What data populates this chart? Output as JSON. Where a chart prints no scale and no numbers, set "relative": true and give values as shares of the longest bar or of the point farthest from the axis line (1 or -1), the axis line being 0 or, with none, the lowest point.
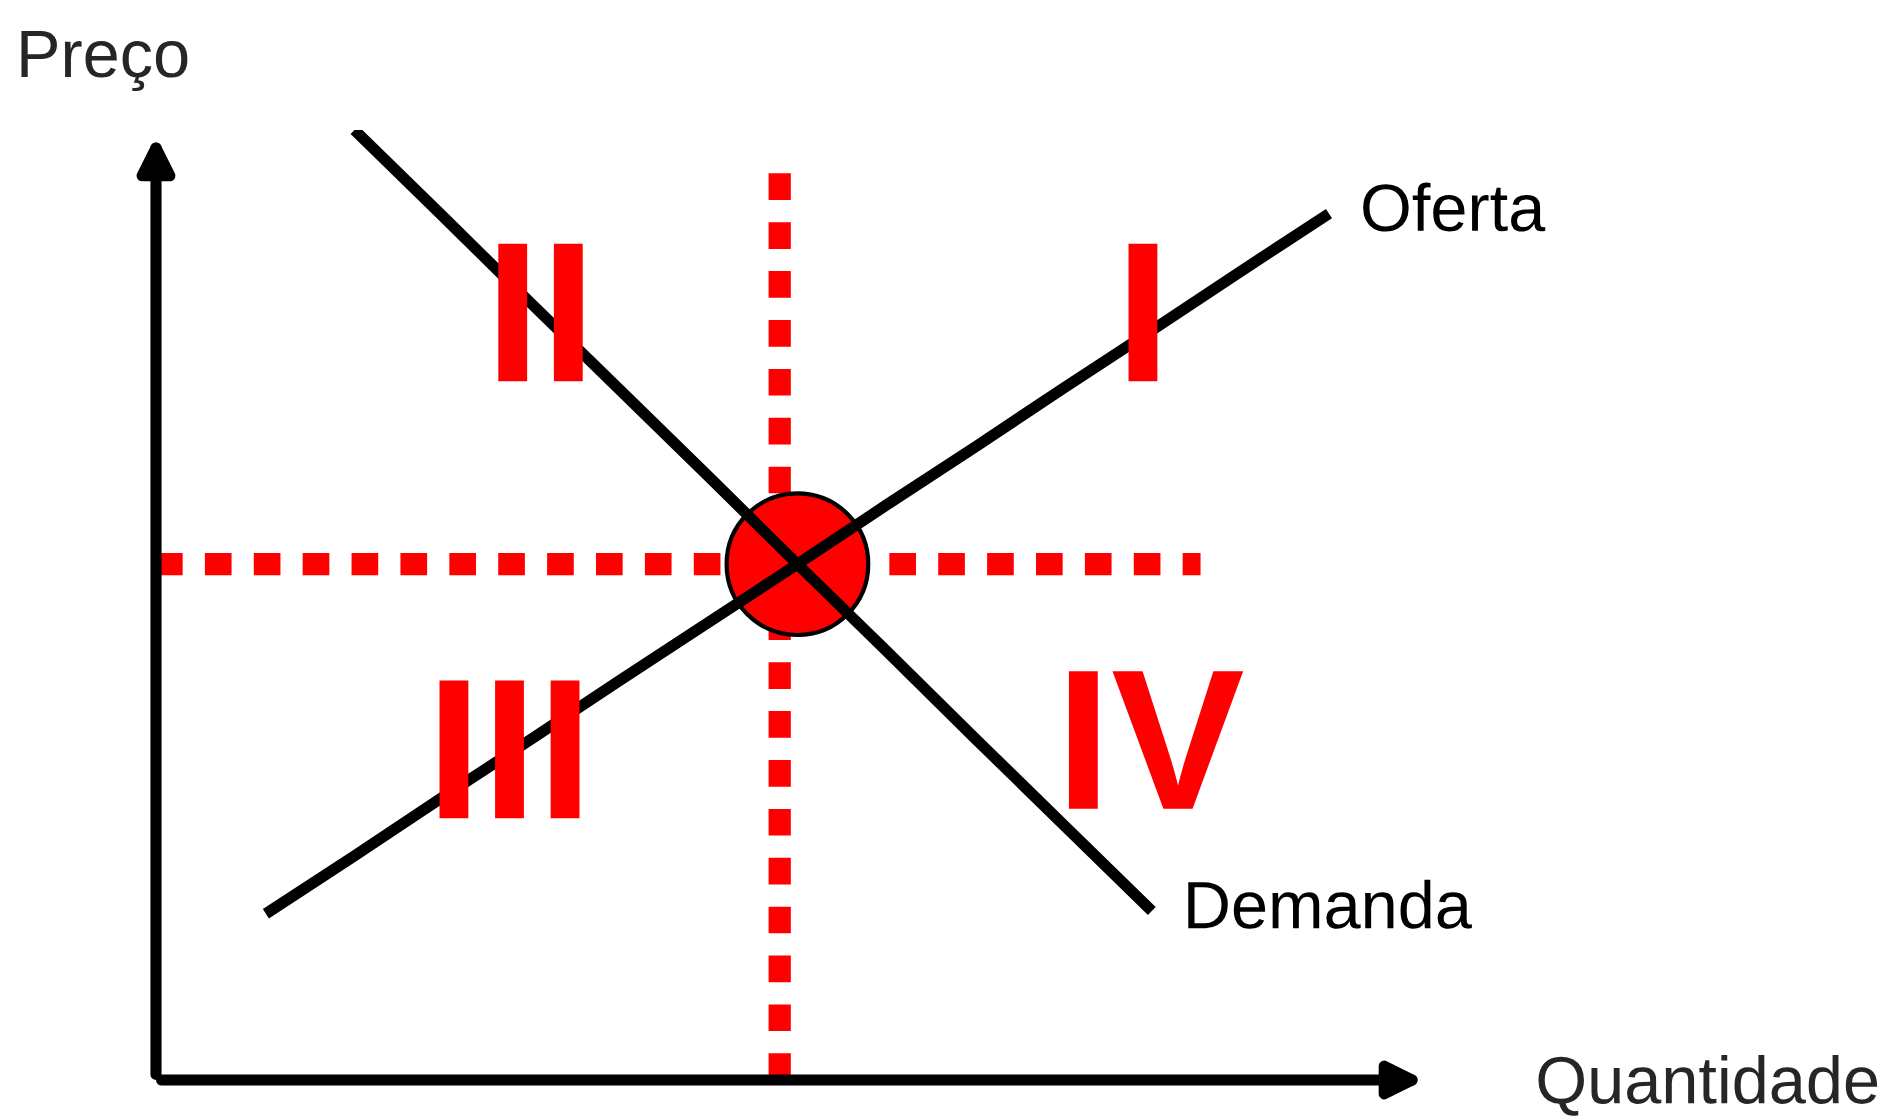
{
  "chart_data": {
    "type": "line",
    "relative": true,
    "xlabel": "Quantidade",
    "ylabel": "Preço",
    "categories": [
      null,
      null,
      null,
      null,
      null,
      null,
      null,
      null,
      null,
      null,
      null,
      null,
      null
    ],
    "series": [
      {
        "name": "Oferta",
        "color": "#000000",
        "values": [
          0.175,
          0.236,
          0.298,
          0.359,
          0.421,
          0.482,
          0.543,
          0.605,
          0.666,
          0.728,
          0.789,
          0.851,
          0.912
        ]
      },
      {
        "name": "Demanda",
        "color": "#000000",
        "values": [
          null,
          1.0,
          0.909,
          0.817,
          0.726,
          0.635,
          0.543,
          0.452,
          0.36,
          0.269,
          0.178,
          null,
          null
        ]
      }
    ],
    "ref_lines": [
      {
        "axis": "y",
        "value": 0.543,
        "color": "#ff0000",
        "line_style": "dotted"
      }
    ],
    "annotations": [
      "I",
      "II",
      "III",
      "IV"
    ],
    "grid": false,
    "legend": false
  }
}
